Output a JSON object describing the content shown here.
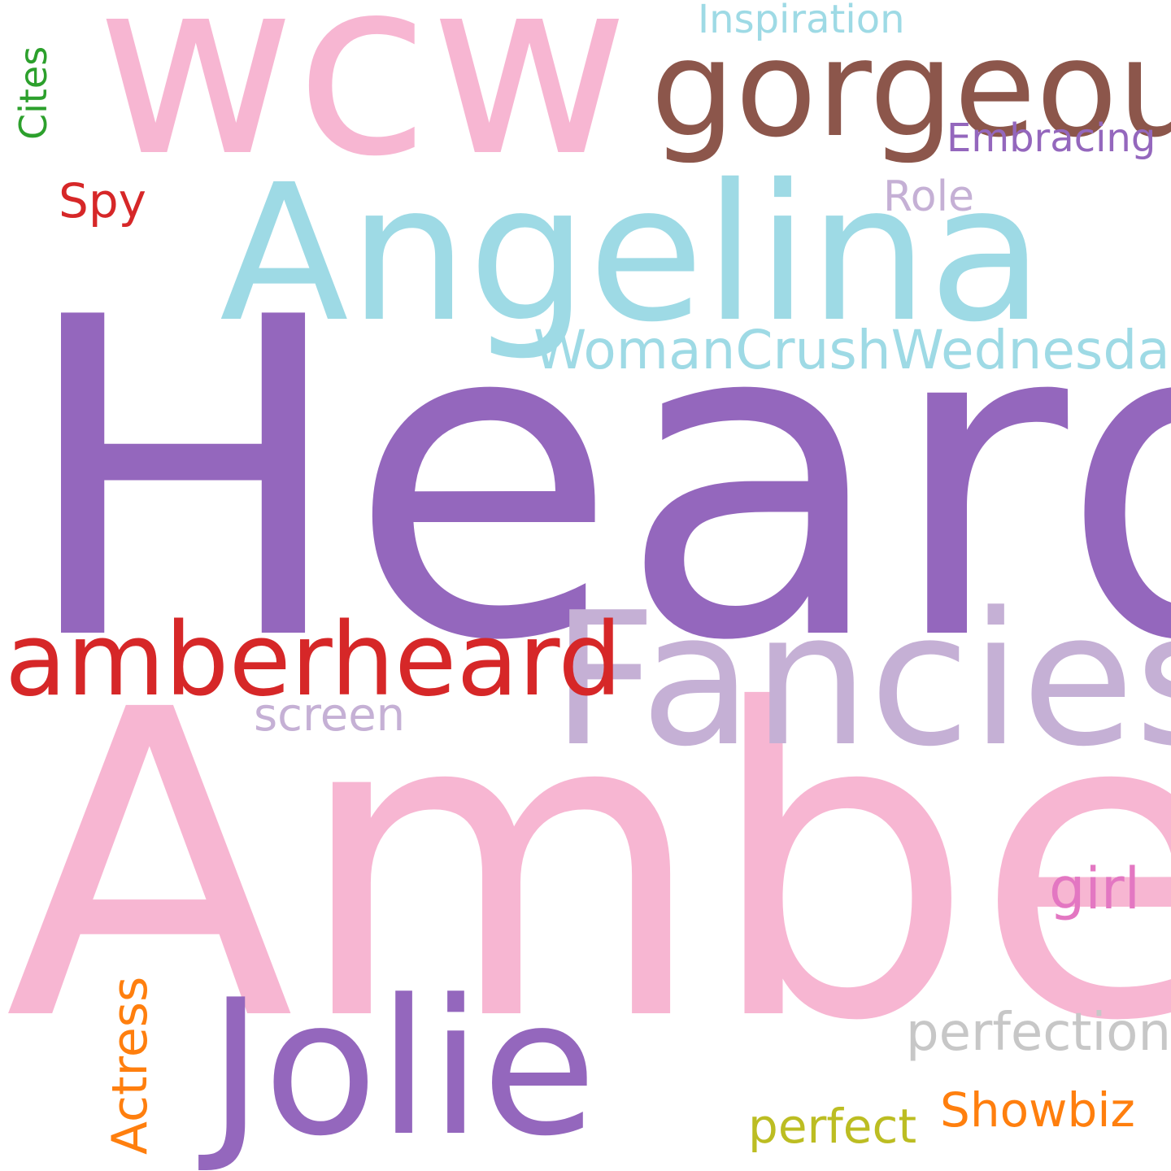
{
  "cloud": {
    "words": [
      {
        "key": "heard",
        "text": "Heard",
        "color": "#9467bd"
      },
      {
        "key": "amber",
        "text": "Amber",
        "color": "#f7b6d2"
      },
      {
        "key": "wcw",
        "text": "wcw",
        "color": "#f7b6d2"
      },
      {
        "key": "angelina",
        "text": "Angelina",
        "color": "#9edae5"
      },
      {
        "key": "fancies",
        "text": "Fancies",
        "color": "#c5b0d5"
      },
      {
        "key": "jolie",
        "text": "Jolie",
        "color": "#9467bd"
      },
      {
        "key": "gorgeous",
        "text": "gorgeous",
        "color": "#8c564b"
      },
      {
        "key": "amberheard",
        "text": "amberheard",
        "color": "#d62728"
      },
      {
        "key": "wcwed",
        "text": "WomanCrushWednesday",
        "color": "#9edae5"
      },
      {
        "key": "inspiration",
        "text": "Inspiration",
        "color": "#9edae5"
      },
      {
        "key": "embracing",
        "text": "Embracing",
        "color": "#9467bd"
      },
      {
        "key": "role",
        "text": "Role",
        "color": "#c5b0d5"
      },
      {
        "key": "spy",
        "text": "Spy",
        "color": "#d62728"
      },
      {
        "key": "screen",
        "text": "screen",
        "color": "#c5b0d5"
      },
      {
        "key": "girl",
        "text": "girl",
        "color": "#e377c2"
      },
      {
        "key": "perfection",
        "text": "perfection",
        "color": "#c7c7c7"
      },
      {
        "key": "showbiz",
        "text": "Showbiz",
        "color": "#ff7f0e"
      },
      {
        "key": "perfect",
        "text": "perfect",
        "color": "#bcbd22"
      },
      {
        "key": "cites",
        "text": "Cites",
        "color": "#2ca02c"
      },
      {
        "key": "actress",
        "text": "Actress",
        "color": "#ff7f0e"
      }
    ]
  }
}
